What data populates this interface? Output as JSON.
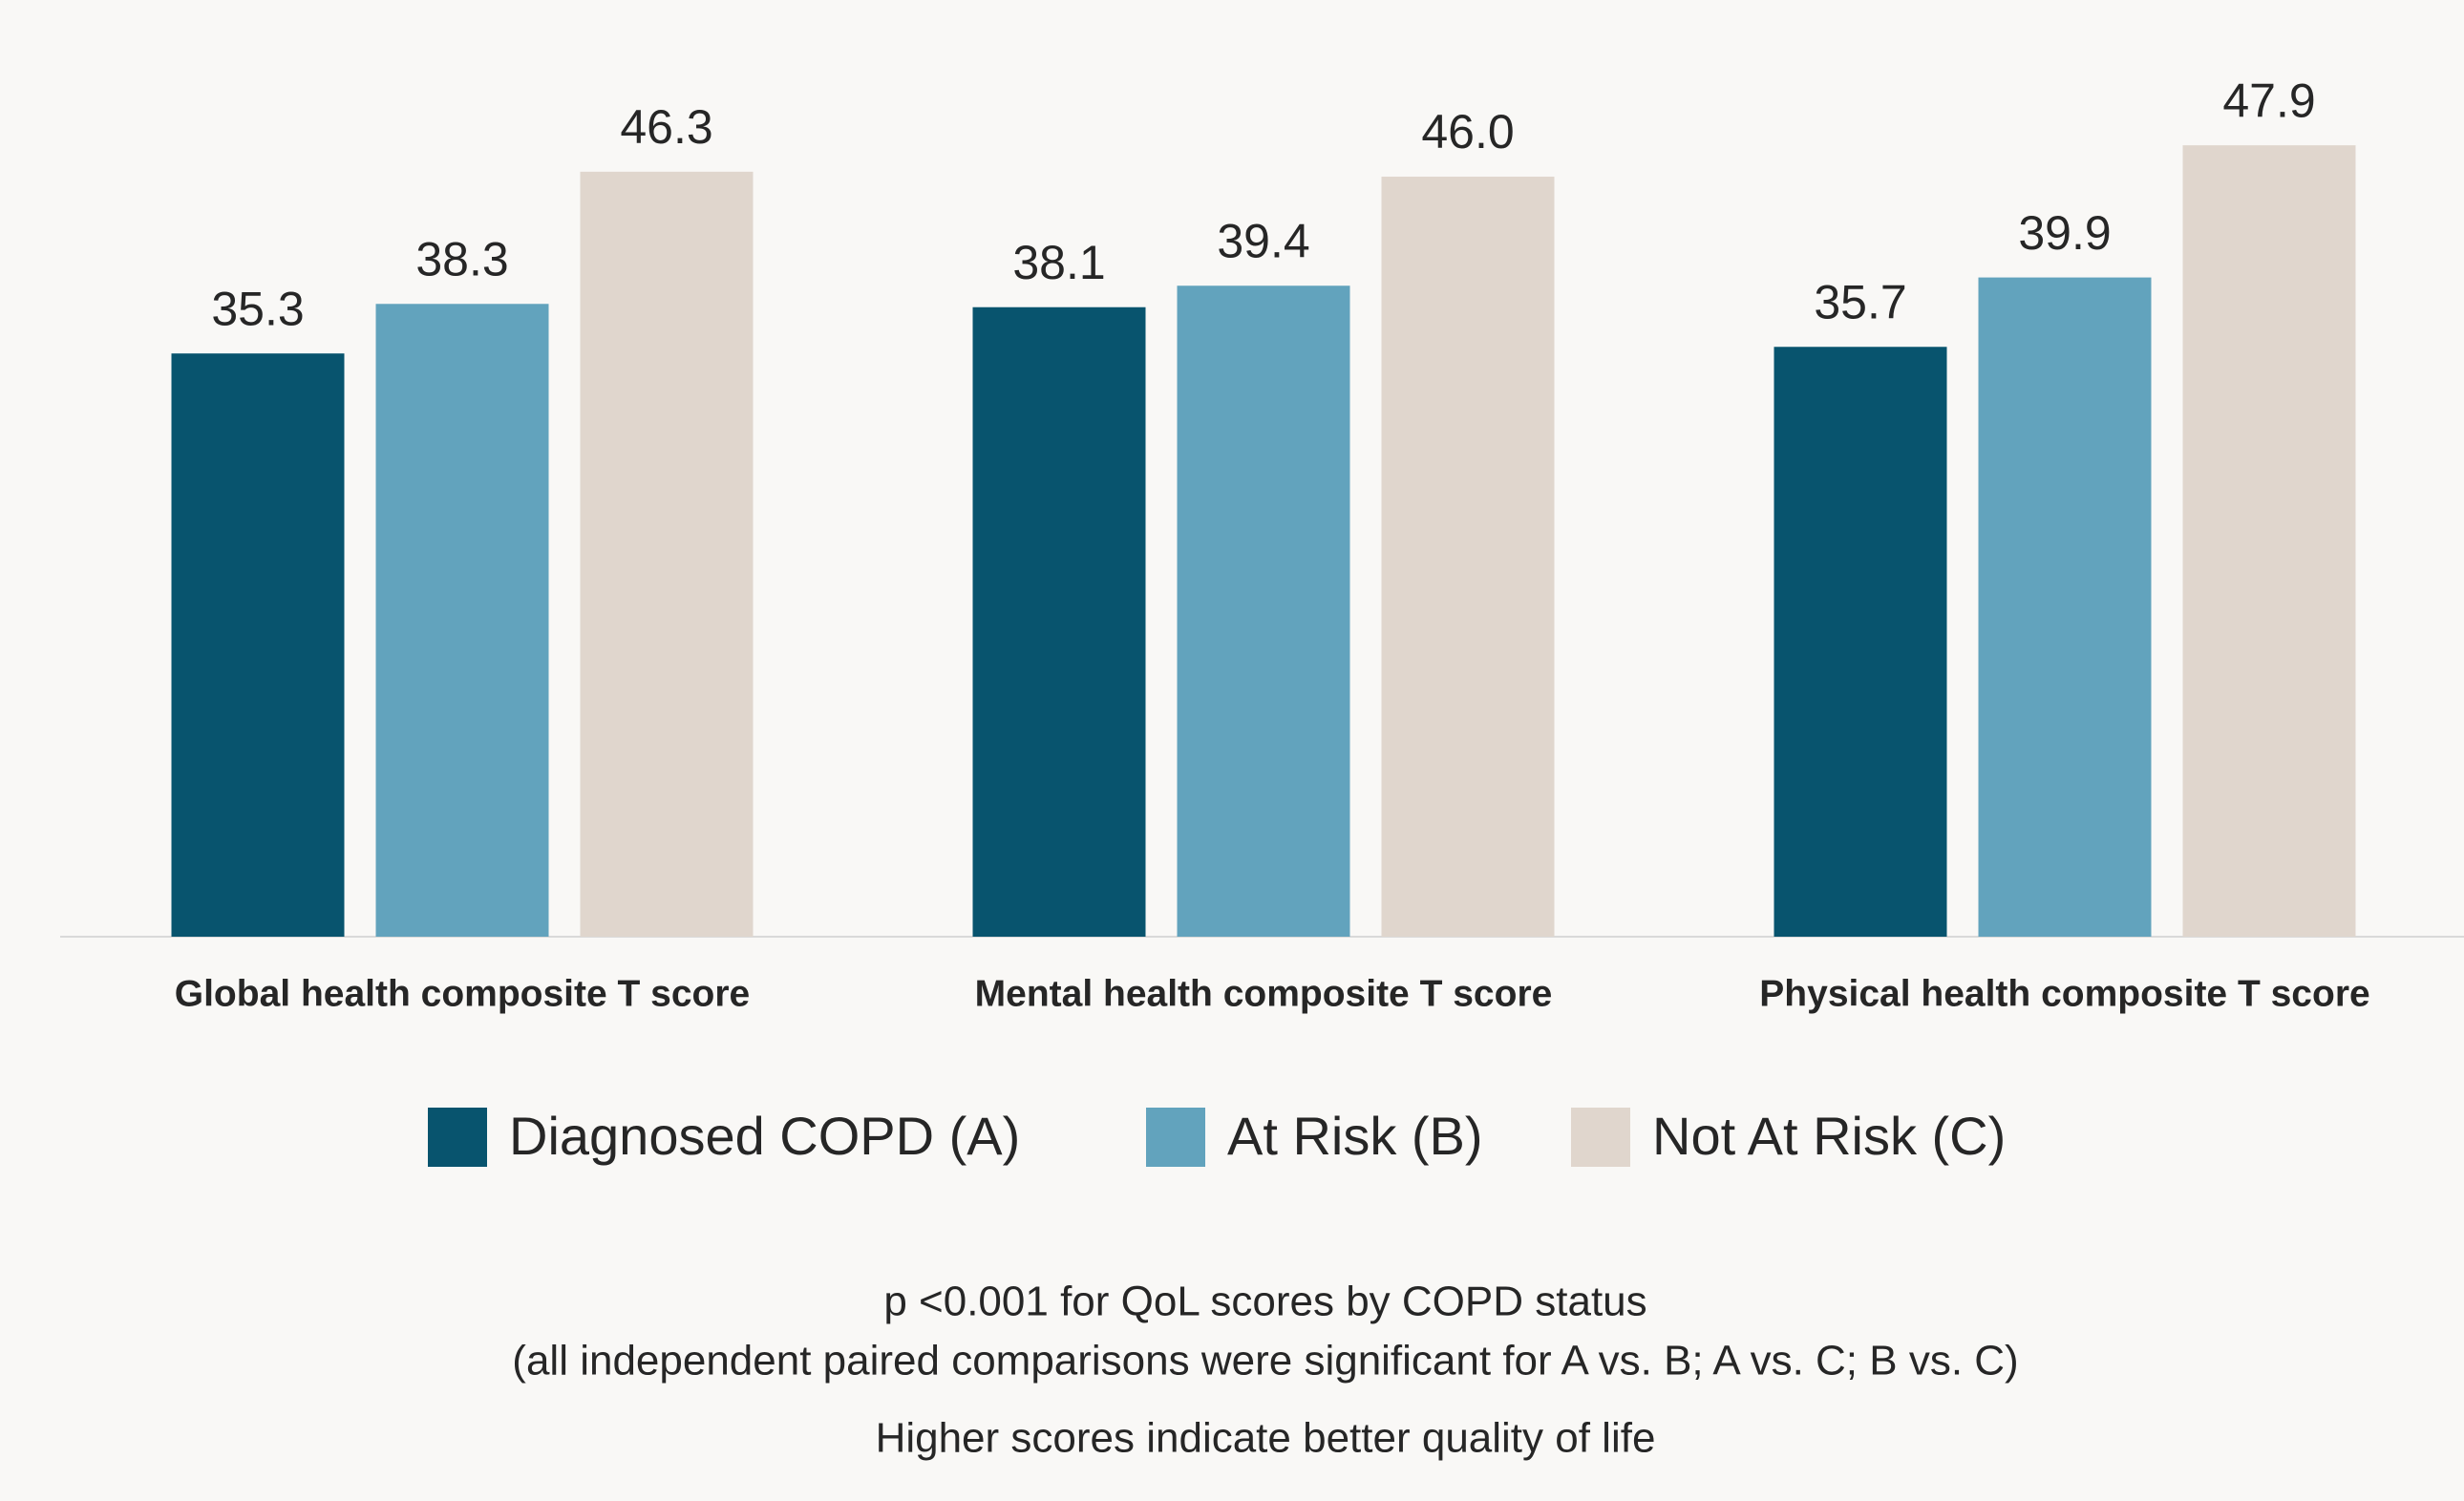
{
  "chart_data": {
    "type": "bar",
    "categories": [
      "Global health composite T score",
      "Mental health composite T score",
      "Physical health composite T score"
    ],
    "series": [
      {
        "name": "Diagnosed COPD (A)",
        "color": "#08546e",
        "values": [
          35.3,
          38.1,
          35.7
        ],
        "value_labels": [
          "35.3",
          "38.1",
          "35.7"
        ]
      },
      {
        "name": "At Risk (B)",
        "color": "#62a3bd",
        "values": [
          38.3,
          39.4,
          39.9
        ],
        "value_labels": [
          "38.3",
          "39.4",
          "39.9"
        ]
      },
      {
        "name": "Not At Risk (C)",
        "color": "#e0d6cd",
        "values": [
          46.3,
          46.0,
          47.9
        ],
        "value_labels": [
          "46.3",
          "46.0",
          "47.9"
        ]
      }
    ],
    "ylim": [
      0,
      56
    ],
    "legend": "bottom",
    "notes": [
      "p <0.001 for QoL scores by COPD status",
      "(all independent paired comparisons were significant for A vs. B; A vs. C; B vs. C)",
      "Higher scores indicate better quality of life"
    ]
  }
}
